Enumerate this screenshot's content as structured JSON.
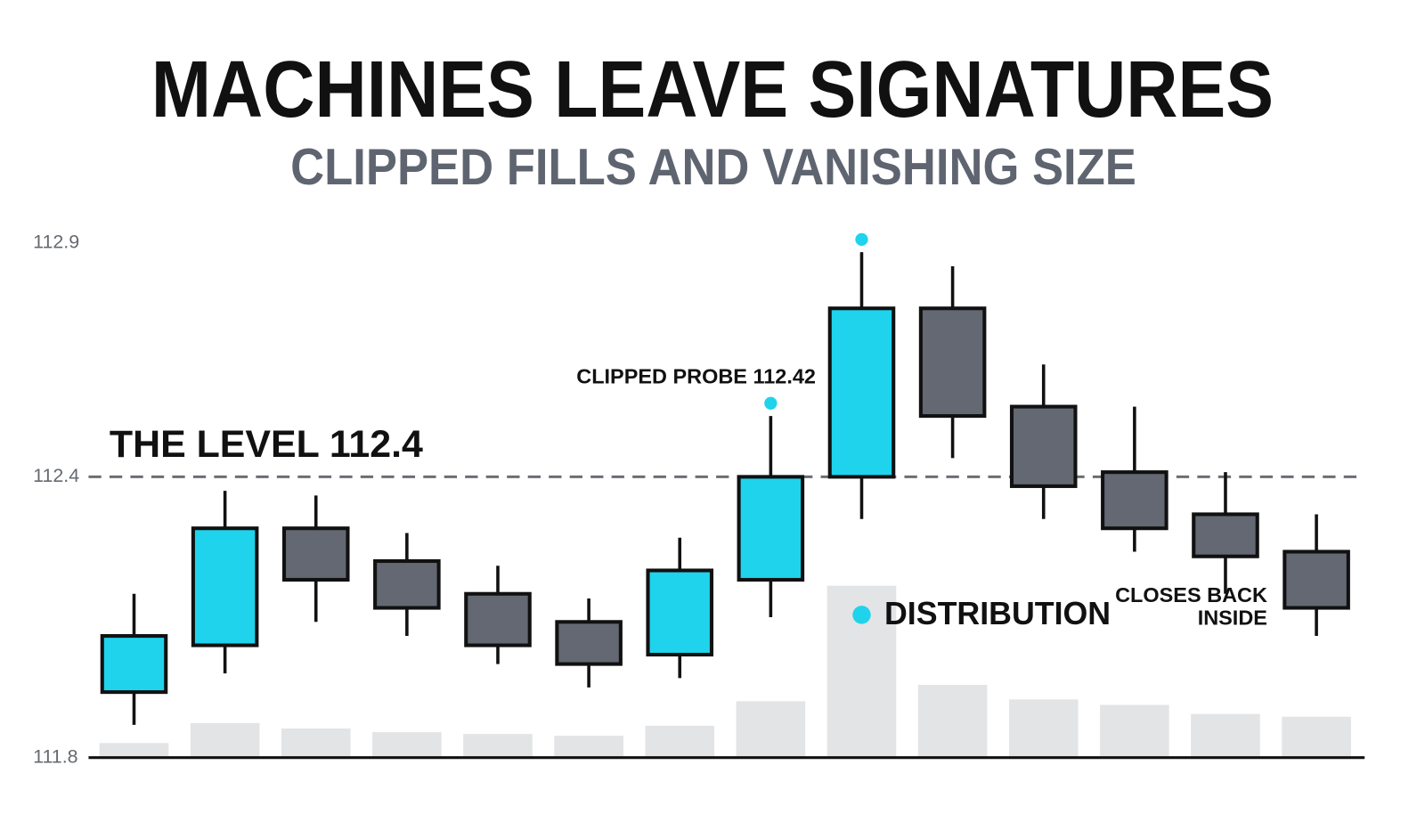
{
  "chart_data": {
    "type": "candlestick",
    "title": "MACHINES LEAVE SIGNATURES",
    "subtitle": "CLIPPED FILLS AND VANISHING SIZE",
    "open": [
      111.94,
      112.04,
      112.29,
      112.22,
      112.15,
      112.09,
      112.02,
      112.18,
      112.4,
      112.76,
      112.55,
      112.41,
      112.32,
      112.24
    ],
    "high": [
      112.15,
      112.37,
      112.36,
      112.28,
      112.21,
      112.14,
      112.27,
      112.53,
      112.88,
      112.85,
      112.64,
      112.55,
      112.41,
      112.32
    ],
    "low": [
      111.87,
      111.98,
      112.09,
      112.06,
      112.0,
      111.95,
      111.97,
      112.1,
      112.31,
      112.44,
      112.31,
      112.24,
      112.15,
      112.06
    ],
    "close": [
      112.06,
      112.29,
      112.18,
      112.12,
      112.04,
      112.0,
      112.2,
      112.4,
      112.76,
      112.53,
      112.38,
      112.29,
      112.23,
      112.12
    ],
    "volume": [
      16,
      38,
      32,
      28,
      26,
      24,
      35,
      62,
      189,
      80,
      64,
      58,
      48,
      45
    ],
    "up_color": "#1fd3ec",
    "down_color": "#636872",
    "volume_color": "#e3e4e6",
    "ylim": [
      111.8,
      112.9
    ],
    "yticks": [
      111.8,
      112.4,
      112.9
    ],
    "level": 112.4,
    "level_label": "THE LEVEL 112.4",
    "annotations": {
      "probe": "CLIPPED PROBE 112.42",
      "distribution": "DISTRIBUTION",
      "closes_back": [
        "CLOSES BACK",
        "INSIDE"
      ]
    }
  }
}
